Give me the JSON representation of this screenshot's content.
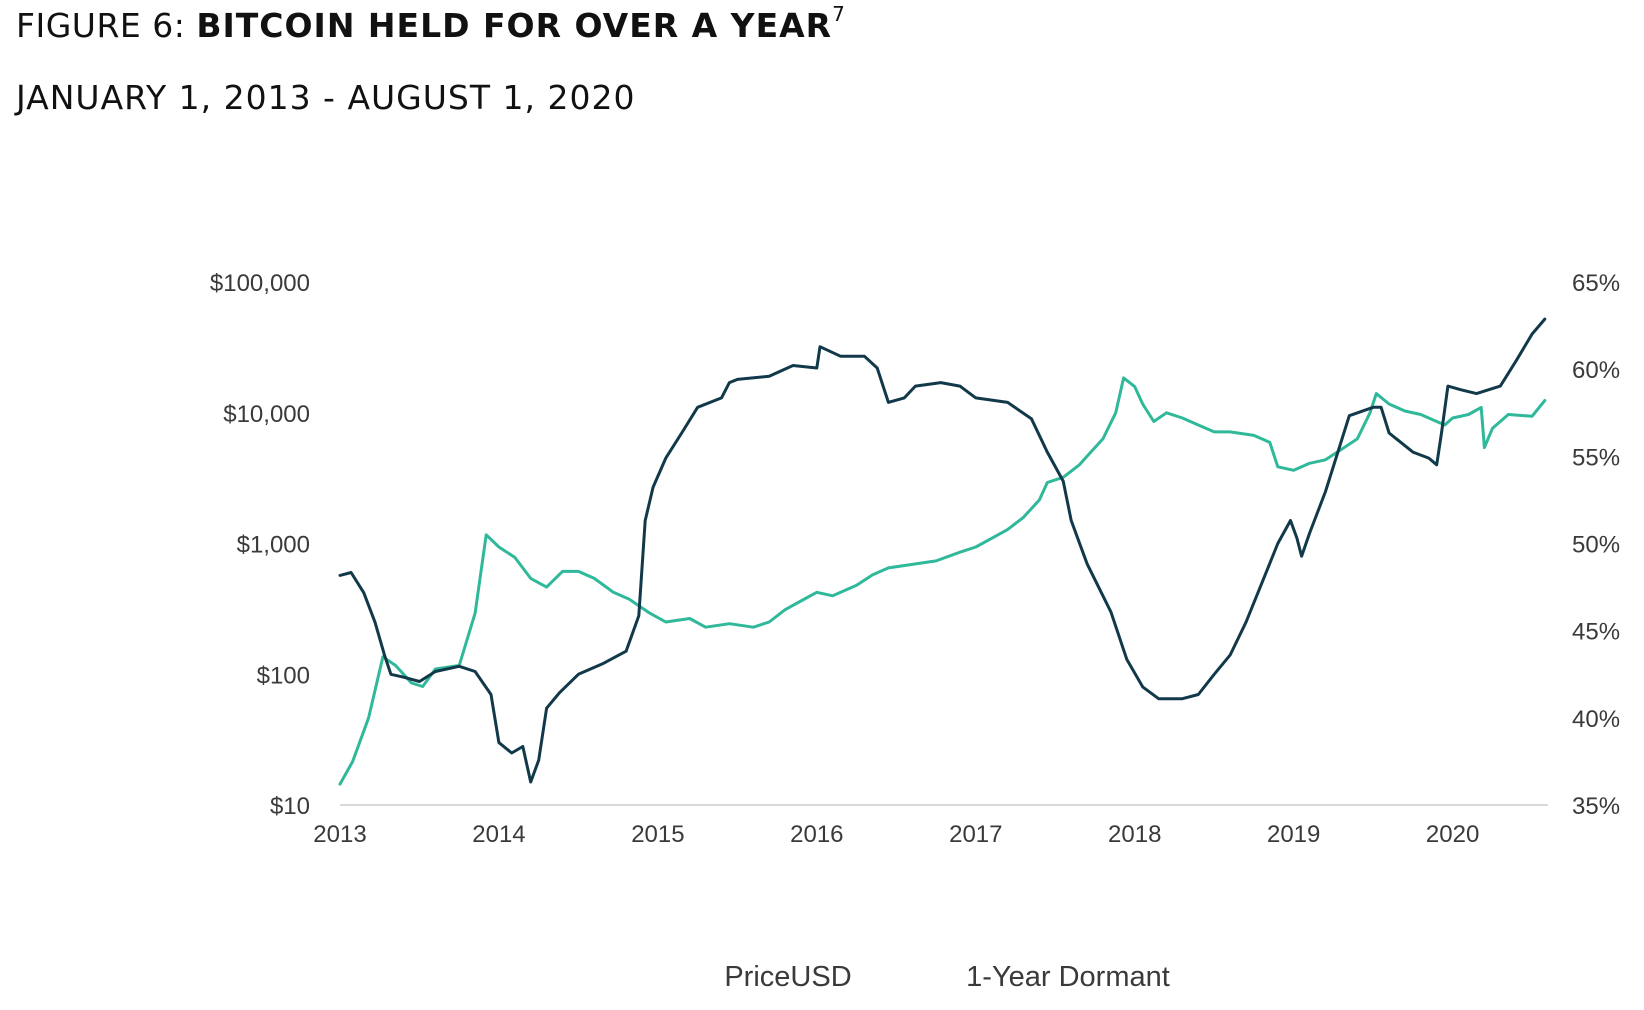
{
  "header": {
    "figure_label": "FIGURE 6:",
    "title": "BITCOIN HELD FOR OVER A YEAR",
    "footnote": "7",
    "date_range": "JANUARY 1, 2013 - AUGUST 1, 2020"
  },
  "colors": {
    "price": "#12394a",
    "dormant": "#2fb99a",
    "axis": "#d9d9d9",
    "text": "#3a3a3a"
  },
  "chart_data": {
    "type": "line",
    "title": "BITCOIN HELD FOR OVER A YEAR",
    "subtitle": "JANUARY 1, 2013 - AUGUST 1, 2020",
    "xlabel": "",
    "ylabel_left": "",
    "ylabel_right": "",
    "x_ticks": [
      "2013",
      "2014",
      "2015",
      "2016",
      "2017",
      "2018",
      "2019",
      "2020"
    ],
    "x_range": [
      2013.0,
      2020.6
    ],
    "y_left": {
      "scale": "log",
      "range": [
        10,
        100000
      ],
      "ticks": [
        {
          "value": 10,
          "label": "$10"
        },
        {
          "value": 100,
          "label": "$100"
        },
        {
          "value": 1000,
          "label": "$1,000"
        },
        {
          "value": 10000,
          "label": "$10,000"
        },
        {
          "value": 100000,
          "label": "$100,000"
        }
      ]
    },
    "y_right": {
      "scale": "linear",
      "range": [
        35,
        65
      ],
      "ticks": [
        {
          "value": 35,
          "label": "35%"
        },
        {
          "value": 40,
          "label": "40%"
        },
        {
          "value": 45,
          "label": "45%"
        },
        {
          "value": 50,
          "label": "50%"
        },
        {
          "value": 55,
          "label": "55%"
        },
        {
          "value": 60,
          "label": "60%"
        },
        {
          "value": 65,
          "label": "65%"
        }
      ]
    },
    "legend": {
      "placement": "bottom-center"
    },
    "series": [
      {
        "name": "PriceUSD",
        "axis": "left",
        "values": [
          [
            2013.0,
            570
          ],
          [
            2013.07,
            600
          ],
          [
            2013.15,
            420
          ],
          [
            2013.22,
            250
          ],
          [
            2013.28,
            140
          ],
          [
            2013.32,
            100
          ],
          [
            2013.4,
            95
          ],
          [
            2013.5,
            88
          ],
          [
            2013.6,
            105
          ],
          [
            2013.75,
            115
          ],
          [
            2013.85,
            105
          ],
          [
            2013.95,
            70
          ],
          [
            2014.0,
            30
          ],
          [
            2014.08,
            25
          ],
          [
            2014.15,
            28
          ],
          [
            2014.2,
            15
          ],
          [
            2014.25,
            22
          ],
          [
            2014.3,
            55
          ],
          [
            2014.38,
            72
          ],
          [
            2014.5,
            100
          ],
          [
            2014.65,
            120
          ],
          [
            2014.8,
            150
          ],
          [
            2014.88,
            280
          ],
          [
            2014.92,
            1500
          ],
          [
            2014.97,
            2700
          ],
          [
            2015.05,
            4500
          ],
          [
            2015.15,
            7000
          ],
          [
            2015.25,
            11000
          ],
          [
            2015.4,
            13000
          ],
          [
            2015.45,
            17000
          ],
          [
            2015.5,
            18000
          ],
          [
            2015.7,
            19000
          ],
          [
            2015.85,
            23000
          ],
          [
            2016.0,
            22000
          ],
          [
            2016.02,
            32000
          ],
          [
            2016.15,
            27000
          ],
          [
            2016.3,
            27000
          ],
          [
            2016.38,
            22000
          ],
          [
            2016.45,
            12000
          ],
          [
            2016.55,
            13000
          ],
          [
            2016.62,
            16000
          ],
          [
            2016.78,
            17000
          ],
          [
            2016.9,
            16000
          ],
          [
            2017.0,
            13000
          ],
          [
            2017.2,
            12000
          ],
          [
            2017.35,
            9000
          ],
          [
            2017.45,
            5000
          ],
          [
            2017.55,
            3000
          ],
          [
            2017.6,
            1500
          ],
          [
            2017.7,
            700
          ],
          [
            2017.85,
            300
          ],
          [
            2017.95,
            130
          ],
          [
            2018.05,
            80
          ],
          [
            2018.15,
            65
          ],
          [
            2018.3,
            65
          ],
          [
            2018.4,
            70
          ],
          [
            2018.5,
            100
          ],
          [
            2018.6,
            140
          ],
          [
            2018.7,
            250
          ],
          [
            2018.8,
            500
          ],
          [
            2018.9,
            1000
          ],
          [
            2018.98,
            1500
          ],
          [
            2019.02,
            1100
          ],
          [
            2019.05,
            800
          ],
          [
            2019.1,
            1200
          ],
          [
            2019.2,
            2500
          ],
          [
            2019.35,
            9500
          ],
          [
            2019.5,
            11000
          ],
          [
            2019.55,
            11000
          ],
          [
            2019.6,
            7000
          ],
          [
            2019.75,
            5000
          ],
          [
            2019.85,
            4500
          ],
          [
            2019.9,
            4000
          ],
          [
            2019.93,
            7000
          ],
          [
            2019.97,
            16000
          ],
          [
            2020.05,
            15000
          ],
          [
            2020.15,
            14000
          ],
          [
            2020.3,
            16000
          ],
          [
            2020.4,
            25000
          ],
          [
            2020.5,
            40000
          ],
          [
            2020.58,
            52000
          ]
        ]
      },
      {
        "name": "1-Year Dormant",
        "axis": "right",
        "values": [
          [
            2013.0,
            36.2
          ],
          [
            2013.08,
            37.5
          ],
          [
            2013.18,
            40.0
          ],
          [
            2013.27,
            43.5
          ],
          [
            2013.35,
            43.0
          ],
          [
            2013.45,
            42.0
          ],
          [
            2013.52,
            41.8
          ],
          [
            2013.6,
            42.8
          ],
          [
            2013.75,
            43.0
          ],
          [
            2013.85,
            46.0
          ],
          [
            2013.92,
            50.5
          ],
          [
            2014.0,
            49.8
          ],
          [
            2014.1,
            49.2
          ],
          [
            2014.2,
            48.0
          ],
          [
            2014.3,
            47.5
          ],
          [
            2014.4,
            48.4
          ],
          [
            2014.5,
            48.4
          ],
          [
            2014.6,
            48.0
          ],
          [
            2014.72,
            47.2
          ],
          [
            2014.82,
            46.8
          ],
          [
            2014.95,
            46.0
          ],
          [
            2015.05,
            45.5
          ],
          [
            2015.2,
            45.7
          ],
          [
            2015.3,
            45.2
          ],
          [
            2015.45,
            45.4
          ],
          [
            2015.6,
            45.2
          ],
          [
            2015.7,
            45.5
          ],
          [
            2015.8,
            46.2
          ],
          [
            2015.9,
            46.7
          ],
          [
            2016.0,
            47.2
          ],
          [
            2016.1,
            47.0
          ],
          [
            2016.25,
            47.6
          ],
          [
            2016.35,
            48.2
          ],
          [
            2016.45,
            48.6
          ],
          [
            2016.6,
            48.8
          ],
          [
            2016.75,
            49.0
          ],
          [
            2016.9,
            49.5
          ],
          [
            2017.0,
            49.8
          ],
          [
            2017.1,
            50.3
          ],
          [
            2017.2,
            50.8
          ],
          [
            2017.3,
            51.5
          ],
          [
            2017.4,
            52.5
          ],
          [
            2017.45,
            53.5
          ],
          [
            2017.55,
            53.8
          ],
          [
            2017.65,
            54.5
          ],
          [
            2017.72,
            55.2
          ],
          [
            2017.8,
            56.0
          ],
          [
            2017.88,
            57.5
          ],
          [
            2017.93,
            59.5
          ],
          [
            2018.0,
            59.0
          ],
          [
            2018.05,
            58.0
          ],
          [
            2018.12,
            57.0
          ],
          [
            2018.2,
            57.5
          ],
          [
            2018.3,
            57.2
          ],
          [
            2018.4,
            56.8
          ],
          [
            2018.5,
            56.4
          ],
          [
            2018.6,
            56.4
          ],
          [
            2018.75,
            56.2
          ],
          [
            2018.85,
            55.8
          ],
          [
            2018.9,
            54.4
          ],
          [
            2019.0,
            54.2
          ],
          [
            2019.1,
            54.6
          ],
          [
            2019.2,
            54.8
          ],
          [
            2019.3,
            55.4
          ],
          [
            2019.4,
            56.0
          ],
          [
            2019.48,
            57.5
          ],
          [
            2019.52,
            58.6
          ],
          [
            2019.6,
            58.0
          ],
          [
            2019.7,
            57.6
          ],
          [
            2019.8,
            57.4
          ],
          [
            2019.9,
            57.0
          ],
          [
            2019.95,
            56.8
          ],
          [
            2020.0,
            57.2
          ],
          [
            2020.1,
            57.4
          ],
          [
            2020.18,
            57.8
          ],
          [
            2020.2,
            55.5
          ],
          [
            2020.25,
            56.6
          ],
          [
            2020.35,
            57.4
          ],
          [
            2020.5,
            57.3
          ],
          [
            2020.58,
            58.2
          ]
        ]
      }
    ]
  }
}
